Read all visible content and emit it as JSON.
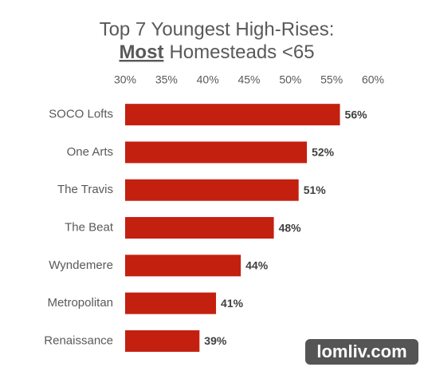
{
  "chart_data": {
    "type": "bar",
    "title": {
      "line1": "Top 7 Youngest High-Rises:",
      "line2_emphasis": "Most",
      "line2_rest": "Homesteads <65"
    },
    "categories": [
      "SOCO Lofts",
      "One Arts",
      "The Travis",
      "The Beat",
      "Wyndemere",
      "Metropolitan",
      "Renaissance"
    ],
    "values": [
      56,
      52,
      51,
      48,
      44,
      41,
      39
    ],
    "value_labels": [
      "56%",
      "52%",
      "51%",
      "48%",
      "44%",
      "41%",
      "39%"
    ],
    "color": "#c42010",
    "xlim": [
      30,
      60
    ],
    "xticks": [
      {
        "value": 30,
        "label": "30%"
      },
      {
        "value": 35,
        "label": "35%"
      },
      {
        "value": 40,
        "label": "40%"
      },
      {
        "value": 45,
        "label": "45%"
      },
      {
        "value": 50,
        "label": "50%"
      },
      {
        "value": 55,
        "label": "55%"
      },
      {
        "value": 60,
        "label": "60%"
      }
    ],
    "grid": false
  },
  "watermark": "lomliv.com"
}
